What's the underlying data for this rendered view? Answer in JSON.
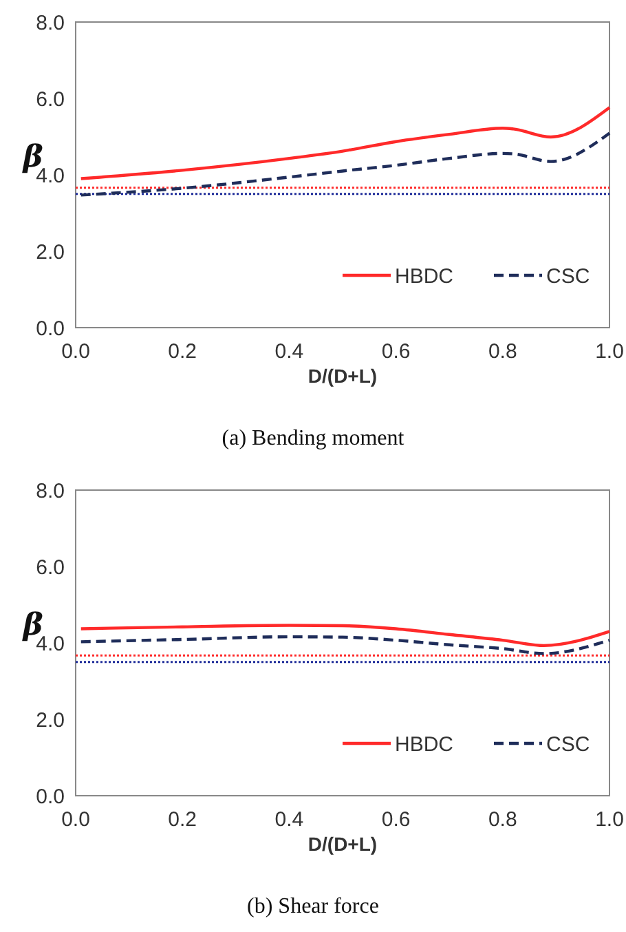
{
  "chart_data": [
    {
      "type": "line",
      "title": "(a)  Bending moment",
      "xlabel": "D/(D+L)",
      "ylabel": "β",
      "legend": "bottom right",
      "grid": false,
      "xlim": [
        0,
        1
      ],
      "ylim": [
        0,
        8
      ],
      "xticks": [
        {
          "value": 0,
          "label": "0.0"
        },
        {
          "value": 0.2,
          "label": "0.2"
        },
        {
          "value": 0.4,
          "label": "0.4"
        },
        {
          "value": 0.6,
          "label": "0.6"
        },
        {
          "value": 0.8,
          "label": "0.8"
        },
        {
          "value": 1,
          "label": "1.0"
        }
      ],
      "yticks": [
        {
          "value": 0,
          "label": "0.0"
        },
        {
          "value": 2,
          "label": "2.0"
        },
        {
          "value": 4,
          "label": "4.0"
        },
        {
          "value": 6,
          "label": "6.0"
        },
        {
          "value": 8,
          "label": "8.0"
        }
      ],
      "x": [
        0.01,
        0.2,
        0.4,
        0.5,
        0.6,
        0.7,
        0.8,
        0.82,
        0.89,
        1.0
      ],
      "series": [
        {
          "name": "HBDC",
          "color": "#ff2a2a",
          "line_style": "solid",
          "values": [
            3.9,
            4.12,
            4.43,
            4.62,
            4.87,
            5.06,
            5.22,
            5.2,
            4.99,
            5.76
          ]
        },
        {
          "name": "CSC",
          "color": "#1f2d5a",
          "line_style": "dashed",
          "values": [
            3.47,
            3.65,
            3.94,
            4.1,
            4.25,
            4.43,
            4.56,
            4.55,
            4.35,
            5.09
          ]
        }
      ],
      "ref_lines": [
        {
          "axis": "y",
          "value": 3.66,
          "color": "#ff2a2a",
          "line_style": "dotted"
        },
        {
          "axis": "y",
          "value": 3.5,
          "color": "#1f2d9a",
          "line_style": "dotted"
        }
      ]
    },
    {
      "type": "line",
      "title": "(b)  Shear force",
      "xlabel": "D/(D+L)",
      "ylabel": "β",
      "legend": "bottom right",
      "grid": false,
      "xlim": [
        0,
        1
      ],
      "ylim": [
        0,
        8
      ],
      "xticks": [
        {
          "value": 0,
          "label": "0.0"
        },
        {
          "value": 0.2,
          "label": "0.2"
        },
        {
          "value": 0.4,
          "label": "0.4"
        },
        {
          "value": 0.6,
          "label": "0.6"
        },
        {
          "value": 0.8,
          "label": "0.8"
        },
        {
          "value": 1,
          "label": "1.0"
        }
      ],
      "yticks": [
        {
          "value": 0,
          "label": "0.0"
        },
        {
          "value": 2,
          "label": "2.0"
        },
        {
          "value": 4,
          "label": "4.0"
        },
        {
          "value": 6,
          "label": "6.0"
        },
        {
          "value": 8,
          "label": "8.0"
        }
      ],
      "x": [
        0.01,
        0.2,
        0.4,
        0.5,
        0.6,
        0.7,
        0.8,
        0.877,
        1.0
      ],
      "series": [
        {
          "name": "HBDC",
          "color": "#ff2a2a",
          "line_style": "solid",
          "values": [
            4.37,
            4.42,
            4.46,
            4.45,
            4.37,
            4.22,
            4.07,
            3.93,
            4.3
          ]
        },
        {
          "name": "CSC",
          "color": "#1f2d5a",
          "line_style": "dashed",
          "values": [
            4.03,
            4.09,
            4.16,
            4.15,
            4.07,
            3.95,
            3.85,
            3.72,
            4.07
          ]
        }
      ],
      "ref_lines": [
        {
          "axis": "y",
          "value": 3.67,
          "color": "#ff2a2a",
          "line_style": "dotted"
        },
        {
          "axis": "y",
          "value": 3.5,
          "color": "#1f2d9a",
          "line_style": "dotted"
        }
      ]
    }
  ]
}
